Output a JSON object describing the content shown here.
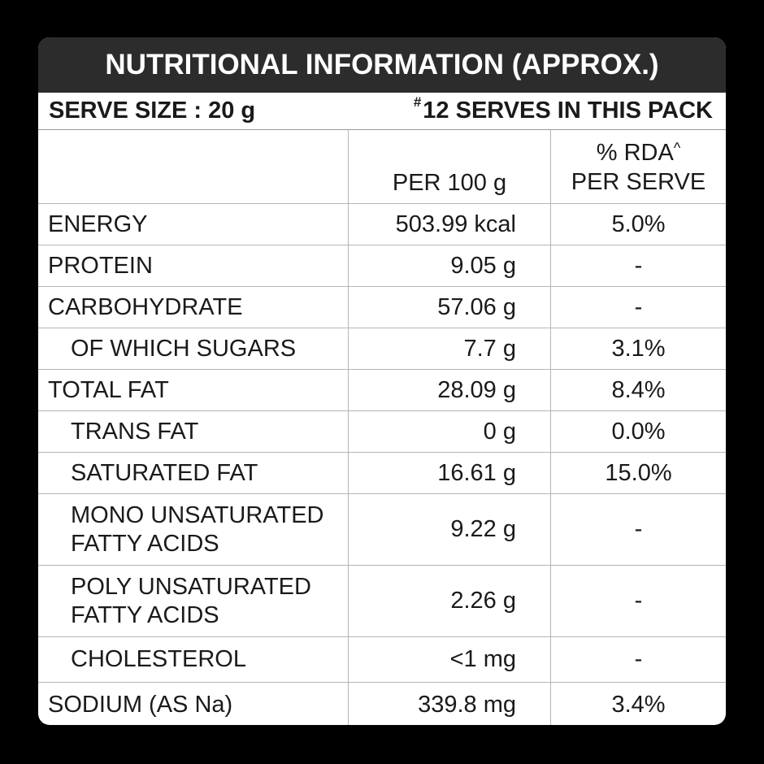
{
  "title": "NUTRITIONAL INFORMATION (APPROX.)",
  "serve_size": "SERVE SIZE : 20 g",
  "serves_pack_mark": "#",
  "serves_pack": "12 SERVES IN THIS PACK",
  "columns": {
    "per100": "PER 100 g",
    "rda_line1": "% RDA",
    "rda_mark": "^",
    "rda_line2": "PER SERVE"
  },
  "rows": [
    {
      "label": "ENERGY",
      "per100": "503.99 kcal",
      "rda": "5.0%"
    },
    {
      "label": "PROTEIN",
      "per100": "9.05 g",
      "rda": "-"
    },
    {
      "label": "CARBOHYDRATE",
      "per100": "57.06 g",
      "rda": "-"
    },
    {
      "label": "OF WHICH SUGARS",
      "per100": "7.7 g",
      "rda": "3.1%"
    },
    {
      "label": "TOTAL FAT",
      "per100": "28.09 g",
      "rda": "8.4%"
    },
    {
      "label": "TRANS FAT",
      "per100": "0 g",
      "rda": "0.0%"
    },
    {
      "label": "SATURATED FAT",
      "per100": "16.61 g",
      "rda": "15.0%"
    },
    {
      "label_line1": "MONO UNSATURATED",
      "label_line2": "FATTY ACIDS",
      "per100": "9.22 g",
      "rda": "-"
    },
    {
      "label_line1": "POLY UNSATURATED",
      "label_line2": "FATTY ACIDS",
      "per100": "2.26 g",
      "rda": "-"
    },
    {
      "label": "CHOLESTEROL",
      "per100": "<1 mg",
      "rda": "-"
    },
    {
      "label": "SODIUM (AS Na)",
      "per100": "339.8 mg",
      "rda": "3.4%"
    }
  ]
}
